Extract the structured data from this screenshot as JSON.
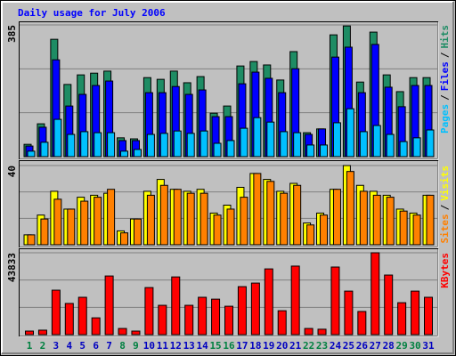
{
  "chart_data": [
    {
      "type": "bar",
      "title": "Daily usage for July 2006",
      "ylim": [
        0,
        385
      ],
      "yticks": [
        385
      ],
      "legend_separator": "/",
      "series": [
        {
          "name": "Hits",
          "color": "#1e8c64",
          "values": [
            36,
            96,
            343,
            211,
            239,
            244,
            250,
            55,
            52,
            231,
            226,
            250,
            216,
            234,
            127,
            148,
            265,
            278,
            268,
            224,
            307,
            70,
            81,
            356,
            382,
            218,
            364,
            239,
            190,
            231,
            231
          ]
        },
        {
          "name": "Files",
          "color": "#0000ff",
          "values": [
            31,
            86,
            283,
            148,
            182,
            208,
            221,
            47,
            47,
            187,
            187,
            205,
            182,
            195,
            117,
            117,
            213,
            247,
            229,
            187,
            257,
            65,
            81,
            291,
            320,
            187,
            328,
            203,
            146,
            208,
            208
          ]
        },
        {
          "name": "Pages",
          "color": "#00c0ff",
          "values": [
            16,
            42,
            109,
            65,
            73,
            70,
            70,
            16,
            21,
            65,
            68,
            75,
            68,
            75,
            39,
            47,
            83,
            114,
            101,
            73,
            70,
            34,
            34,
            99,
            140,
            73,
            91,
            65,
            44,
            55,
            78
          ]
        }
      ]
    },
    {
      "type": "bar",
      "ylim": [
        0,
        40
      ],
      "yticks": [
        40
      ],
      "legend_separator": "/",
      "series": [
        {
          "name": "Visits",
          "color": "#ffff00",
          "values": [
            5,
            15,
            27,
            18,
            24,
            25,
            26,
            7,
            13,
            27,
            33,
            28,
            27,
            28,
            16,
            20,
            29,
            36,
            33,
            27,
            31,
            11,
            16,
            28,
            40,
            30,
            27,
            25,
            18,
            16,
            25
          ]
        },
        {
          "name": "Sites",
          "color": "#ff8000",
          "values": [
            5,
            13,
            23,
            18,
            22,
            24,
            28,
            6,
            13,
            25,
            30,
            28,
            26,
            26,
            15,
            18,
            24,
            36,
            32,
            26,
            30,
            10,
            15,
            28,
            37,
            27,
            25,
            24,
            17,
            15,
            25
          ]
        }
      ]
    },
    {
      "type": "bar",
      "ylim": [
        0,
        43833
      ],
      "yticks": [
        43833
      ],
      "categories": [
        "1",
        "2",
        "3",
        "4",
        "5",
        "6",
        "7",
        "8",
        "9",
        "10",
        "11",
        "12",
        "13",
        "14",
        "15",
        "16",
        "17",
        "18",
        "19",
        "20",
        "21",
        "22",
        "23",
        "24",
        "25",
        "26",
        "27",
        "28",
        "29",
        "30",
        "31"
      ],
      "category_colors": [
        "#008040",
        "#008040",
        "#0000c0",
        "#0000c0",
        "#0000c0",
        "#0000c0",
        "#0000c0",
        "#008040",
        "#008040",
        "#0000c0",
        "#0000c0",
        "#0000c0",
        "#0000c0",
        "#0000c0",
        "#008040",
        "#008040",
        "#0000c0",
        "#0000c0",
        "#0000c0",
        "#0000c0",
        "#0000c0",
        "#008040",
        "#008040",
        "#0000c0",
        "#0000c0",
        "#0000c0",
        "#0000c0",
        "#0000c0",
        "#008040",
        "#008040",
        "#0000c0"
      ],
      "series": [
        {
          "name": "KBytes",
          "color": "#ff0000",
          "values": [
            1900,
            2400,
            23800,
            16700,
            20000,
            9000,
            31400,
            3300,
            1900,
            25200,
            15700,
            30900,
            15700,
            20000,
            19000,
            15200,
            25700,
            27600,
            35200,
            12800,
            36700,
            3300,
            2900,
            36200,
            23300,
            12400,
            43833,
            31900,
            17100,
            23300,
            20000
          ]
        }
      ]
    }
  ]
}
